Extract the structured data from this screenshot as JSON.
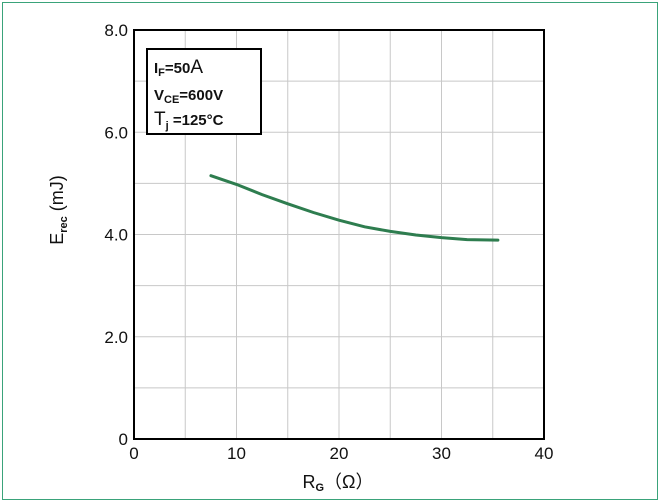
{
  "chart_data": {
    "type": "line",
    "xlabel_main": "R",
    "xlabel_sub": "G",
    "xlabel_unit": "（Ω）",
    "ylabel_main": "E",
    "ylabel_sub": "rec",
    "ylabel_unit": " (mJ)",
    "xlim": [
      0,
      40
    ],
    "ylim": [
      0,
      8.0
    ],
    "xticks": [
      0,
      10,
      20,
      30,
      40
    ],
    "xtick_labels": [
      "0",
      "10",
      "20",
      "30",
      "40"
    ],
    "yticks": [
      0,
      2.0,
      4.0,
      6.0,
      8.0
    ],
    "ytick_labels": [
      "0",
      "2.0",
      "4.0",
      "6.0",
      "8.0"
    ],
    "grid": true,
    "legend": {
      "position": "top-left",
      "lines": [
        {
          "main": "I",
          "sub": "F",
          "rest": "=50",
          "tail": "A"
        },
        {
          "main": "V",
          "sub": "CE",
          "rest": "=600V",
          "tail": ""
        },
        {
          "main": "T",
          "sub": "j",
          "rest": " =125°C",
          "tail": ""
        }
      ]
    },
    "series": [
      {
        "color": "#2e7d4f",
        "x": [
          7.5,
          10,
          12.5,
          15,
          17.5,
          20,
          22.5,
          25,
          27.5,
          30,
          32.5,
          35.5
        ],
        "y": [
          5.15,
          4.98,
          4.78,
          4.6,
          4.43,
          4.28,
          4.15,
          4.06,
          3.99,
          3.94,
          3.9,
          3.89
        ]
      }
    ]
  }
}
